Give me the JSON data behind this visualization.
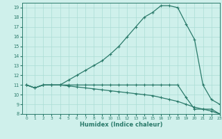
{
  "xlabel": "Humidex (Indice chaleur)",
  "xlim": [
    -0.5,
    23
  ],
  "ylim": [
    8,
    19.5
  ],
  "yticks": [
    8,
    9,
    10,
    11,
    12,
    13,
    14,
    15,
    16,
    17,
    18,
    19
  ],
  "xticks": [
    0,
    1,
    2,
    3,
    4,
    5,
    6,
    7,
    8,
    9,
    10,
    11,
    12,
    13,
    14,
    15,
    16,
    17,
    18,
    19,
    20,
    21,
    22,
    23
  ],
  "bg_color": "#cff0eb",
  "line_color": "#2a7a6a",
  "grid_color": "#aaddd5",
  "line1_x": [
    0,
    1,
    2,
    3,
    4,
    5,
    6,
    7,
    8,
    9,
    10,
    11,
    12,
    13,
    14,
    15,
    16,
    17,
    18,
    19,
    20,
    21,
    22,
    23
  ],
  "line1_y": [
    11.0,
    10.7,
    11.0,
    11.0,
    11.0,
    11.5,
    12.0,
    12.5,
    13.0,
    13.5,
    14.2,
    15.0,
    16.0,
    17.0,
    18.0,
    18.5,
    19.2,
    19.2,
    19.0,
    17.3,
    15.7,
    11.0,
    9.5,
    9.0
  ],
  "line2_x": [
    0,
    1,
    2,
    3,
    4,
    5,
    6,
    7,
    8,
    9,
    10,
    11,
    12,
    13,
    14,
    15,
    16,
    17,
    18,
    19,
    20,
    21,
    22,
    23
  ],
  "line2_y": [
    11.0,
    10.7,
    11.0,
    11.0,
    11.0,
    11.0,
    11.0,
    11.0,
    11.0,
    11.0,
    11.0,
    11.0,
    11.0,
    11.0,
    11.0,
    11.0,
    11.0,
    11.0,
    11.0,
    9.7,
    8.5,
    8.5,
    8.5,
    8.0
  ],
  "line3_x": [
    0,
    1,
    2,
    3,
    4,
    5,
    6,
    7,
    8,
    9,
    10,
    11,
    12,
    13,
    14,
    15,
    16,
    17,
    18,
    19,
    20,
    21,
    22,
    23
  ],
  "line3_y": [
    11.0,
    10.7,
    11.0,
    11.0,
    11.0,
    10.9,
    10.8,
    10.7,
    10.6,
    10.5,
    10.4,
    10.3,
    10.2,
    10.1,
    10.0,
    9.9,
    9.7,
    9.5,
    9.3,
    9.0,
    8.7,
    8.5,
    8.3,
    8.0
  ]
}
